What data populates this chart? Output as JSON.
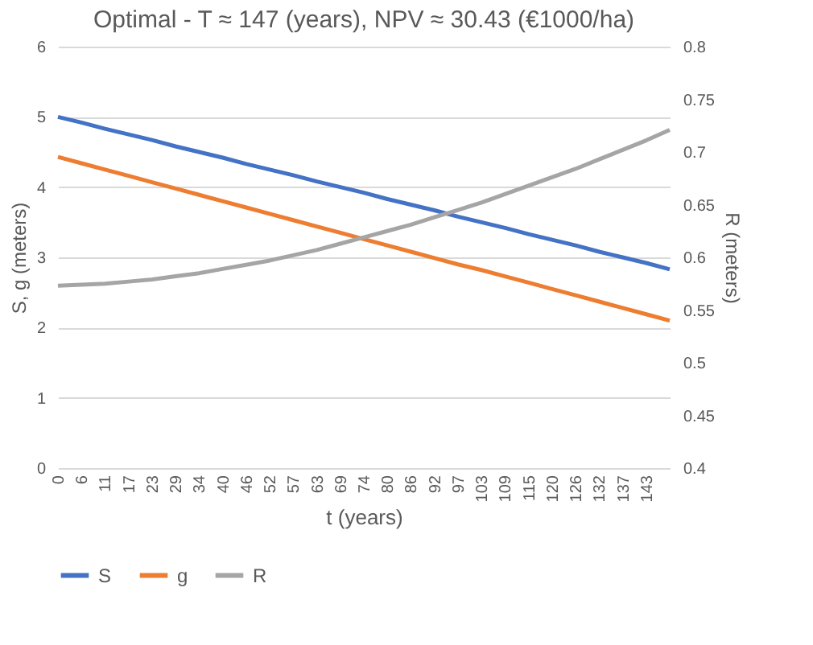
{
  "chart_data": {
    "type": "line",
    "title": "Optimal - T ≈ 147 (years), NPV ≈ 30.43 (€1000/ha)",
    "xlabel": "t (years)",
    "ylabel": "S, g (meters)",
    "y2label": "R (meters)",
    "categories": [
      "0",
      "6",
      "11",
      "17",
      "23",
      "29",
      "34",
      "40",
      "46",
      "52",
      "57",
      "63",
      "69",
      "74",
      "80",
      "86",
      "92",
      "97",
      "103",
      "109",
      "115",
      "120",
      "126",
      "132",
      "137",
      "143",
      null
    ],
    "series": [
      {
        "name": "S",
        "color": "#4472c4",
        "values": [
          5.0,
          4.92,
          4.83,
          4.75,
          4.67,
          4.58,
          4.5,
          4.42,
          4.33,
          4.25,
          4.17,
          4.08,
          4.0,
          3.92,
          3.83,
          3.75,
          3.67,
          3.58,
          3.5,
          3.42,
          3.33,
          3.25,
          3.17,
          3.08,
          3.0,
          2.92,
          2.83
        ]
      },
      {
        "name": "g",
        "color": "#ed7d31",
        "values": [
          4.43,
          4.34,
          4.25,
          4.16,
          4.07,
          3.98,
          3.89,
          3.8,
          3.71,
          3.62,
          3.53,
          3.44,
          3.35,
          3.26,
          3.17,
          3.08,
          2.99,
          2.9,
          2.82,
          2.73,
          2.64,
          2.55,
          2.46,
          2.37,
          2.28,
          2.19,
          2.1
        ]
      },
      {
        "name": "R",
        "color": "#a5a5a5",
        "axis": "y2",
        "values": [
          0.573,
          0.574,
          0.575,
          0.577,
          0.579,
          0.582,
          0.585,
          0.589,
          0.593,
          0.597,
          0.602,
          0.607,
          0.613,
          0.619,
          0.625,
          0.631,
          0.638,
          0.645,
          0.652,
          0.66,
          0.668,
          0.676,
          0.684,
          0.693,
          0.702,
          0.711,
          0.721
        ]
      }
    ],
    "ylim": [
      0,
      6
    ],
    "yticks": [
      0,
      1,
      2,
      3,
      4,
      5,
      6
    ],
    "y2lim": [
      0.4,
      0.8
    ],
    "y2ticks": [
      0.4,
      0.45,
      0.5,
      0.55,
      0.6,
      0.65,
      0.7,
      0.75,
      0.8
    ],
    "grid": "y",
    "legend": "bottom"
  }
}
